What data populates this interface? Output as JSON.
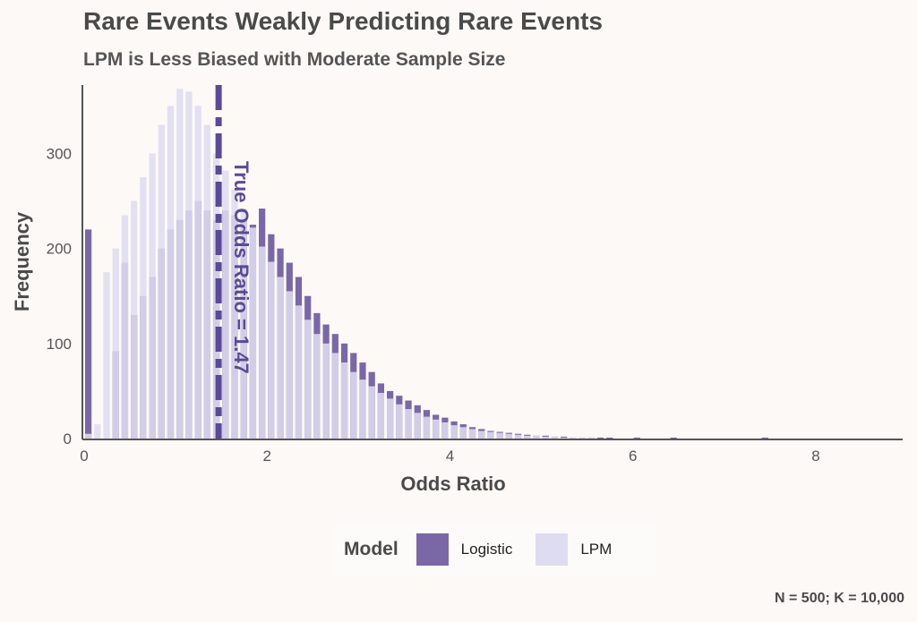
{
  "chart_data": {
    "type": "bar",
    "title": "Rare Events Weakly Predicting Rare Events",
    "subtitle": "LPM is Less Biased with Moderate Sample Size",
    "xlabel": "Odds Ratio",
    "ylabel": "Frequency",
    "xlim": [
      0,
      8.95
    ],
    "ylim": [
      0,
      372
    ],
    "x_ticks": [
      "0",
      "2",
      "4",
      "6",
      "8"
    ],
    "x_tick_values": [
      0,
      2,
      4,
      6,
      8
    ],
    "y_ticks": [
      "0",
      "100",
      "200",
      "300"
    ],
    "y_tick_values": [
      0,
      100,
      200,
      300
    ],
    "bin_width": 0.1,
    "bin_start": 0,
    "series": [
      {
        "name": "Logistic",
        "color": "#7a68a6",
        "values": [
          220,
          0,
          0,
          92,
          185,
          130,
          150,
          170,
          200,
          220,
          230,
          240,
          250,
          240,
          230,
          240,
          235,
          230,
          225,
          242,
          215,
          200,
          185,
          170,
          150,
          132,
          120,
          110,
          100,
          90,
          80,
          70,
          58,
          50,
          45,
          40,
          35,
          30,
          25,
          22,
          18,
          15,
          12,
          10,
          8,
          7,
          6,
          5,
          4,
          3,
          3,
          2,
          2,
          1,
          1,
          1,
          1,
          1,
          0,
          0,
          1,
          0,
          0,
          0,
          1,
          0,
          0,
          0,
          0,
          0,
          0,
          0,
          0,
          0,
          1
        ]
      },
      {
        "name": "LPM",
        "color": "#dedcf0",
        "values": [
          5,
          15,
          175,
          200,
          235,
          250,
          275,
          300,
          330,
          350,
          368,
          365,
          350,
          330,
          300,
          282,
          262,
          242,
          222,
          202,
          186,
          170,
          155,
          140,
          125,
          110,
          100,
          90,
          80,
          70,
          62,
          55,
          48,
          42,
          36,
          31,
          27,
          23,
          20,
          17,
          14,
          12,
          10,
          8,
          7,
          6,
          5,
          4,
          3,
          3,
          2,
          2,
          1,
          1,
          1,
          1,
          0,
          0,
          0,
          0
        ]
      }
    ],
    "annotation": {
      "text": "True Odds Ratio = 1.47",
      "x": 1.47,
      "color": "#5a4a96"
    },
    "legend": {
      "title": "Model",
      "position": "bottom"
    },
    "caption": "N = 500; K = 10,000"
  }
}
